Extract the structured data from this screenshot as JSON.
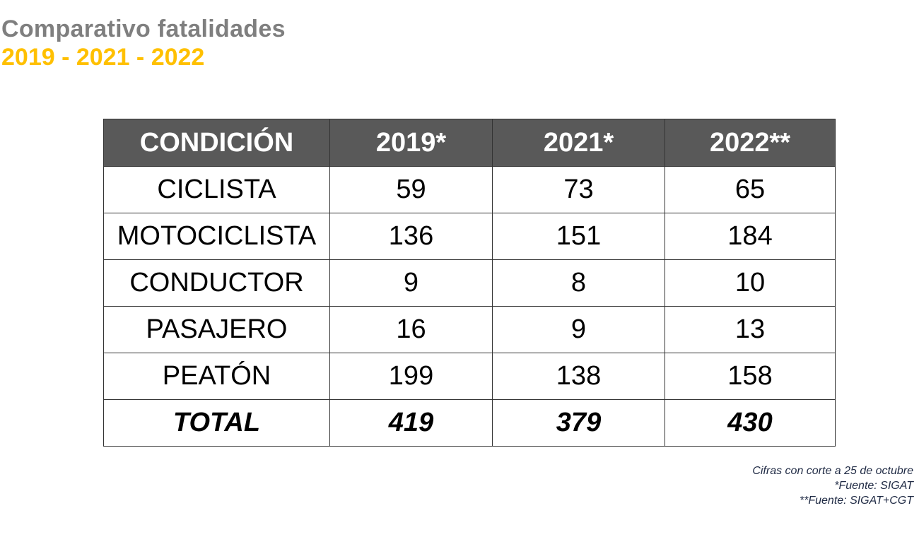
{
  "title": "Comparativo fatalidades",
  "subtitle": "2019 - 2021 - 2022",
  "chart_data": {
    "type": "table",
    "columns": [
      "CONDICIÓN",
      "2019*",
      "2021*",
      "2022**"
    ],
    "rows": [
      [
        "CICLISTA",
        59,
        73,
        65
      ],
      [
        "MOTOCICLISTA",
        136,
        151,
        184
      ],
      [
        "CONDUCTOR",
        9,
        8,
        10
      ],
      [
        "PASAJERO",
        16,
        9,
        13
      ],
      [
        "PEATÓN",
        199,
        138,
        158
      ]
    ],
    "total": [
      "TOTAL",
      419,
      379,
      430
    ],
    "header_color": "#595959"
  },
  "notes": [
    "Cifras con corte a 25 de octubre",
    "*Fuente: SIGAT",
    "**Fuente: SIGAT+CGT"
  ]
}
